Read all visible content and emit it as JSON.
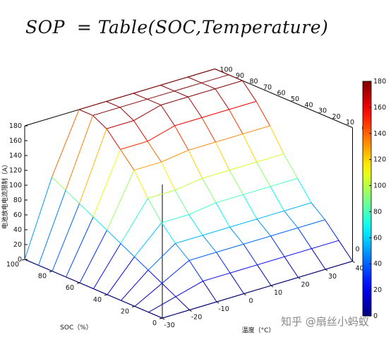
{
  "formula": "SOP  = Table(SOC,Temperature)",
  "watermark": "知乎 @扇丝小蚂蚁",
  "chart_data": {
    "type": "surface",
    "title": "",
    "xlabel": "温度（°C）",
    "ylabel": "SOC（%）",
    "zlabel": "电池放电电流限制（A）",
    "temperature": [
      -30,
      -20,
      -10,
      0,
      10,
      20,
      30,
      40
    ],
    "soc": [
      0,
      10,
      20,
      30,
      40,
      50,
      60,
      70,
      80,
      90,
      100
    ],
    "temperature_ticks": [
      "-30",
      "-20",
      "-10",
      "0",
      "10",
      "20",
      "30",
      "40"
    ],
    "soc_ticks": [
      "0",
      "20",
      "40",
      "60",
      "80",
      "100"
    ],
    "soc_ticks_back": [
      "100",
      "90",
      "80",
      "70",
      "60",
      "50",
      "40",
      "30",
      "20",
      "10",
      "0"
    ],
    "z_ticks": [
      "0",
      "20",
      "40",
      "60",
      "80",
      "100",
      "120",
      "140",
      "160",
      "180"
    ],
    "zlim": [
      0,
      180
    ],
    "colorbar_ticks": [
      "0",
      "20",
      "40",
      "60",
      "80",
      "100",
      "120",
      "140",
      "160",
      "180"
    ],
    "colormap": "jet",
    "sop": [
      [
        0,
        0,
        0,
        0,
        0,
        0,
        0,
        0,
        0,
        0,
        0
      ],
      [
        0,
        10,
        20,
        30,
        40,
        50,
        60,
        70,
        80,
        90,
        100
      ],
      [
        0,
        20,
        40,
        55,
        75,
        100,
        130,
        150,
        170,
        180,
        180
      ],
      [
        0,
        20,
        40,
        55,
        75,
        100,
        130,
        150,
        170,
        180,
        180
      ],
      [
        0,
        20,
        40,
        55,
        80,
        105,
        135,
        160,
        180,
        180,
        180
      ],
      [
        0,
        20,
        40,
        55,
        80,
        105,
        135,
        160,
        180,
        180,
        180
      ],
      [
        0,
        20,
        40,
        55,
        80,
        105,
        135,
        160,
        180,
        180,
        180
      ],
      [
        0,
        20,
        40,
        55,
        80,
        105,
        135,
        160,
        180,
        180,
        180
      ]
    ]
  }
}
